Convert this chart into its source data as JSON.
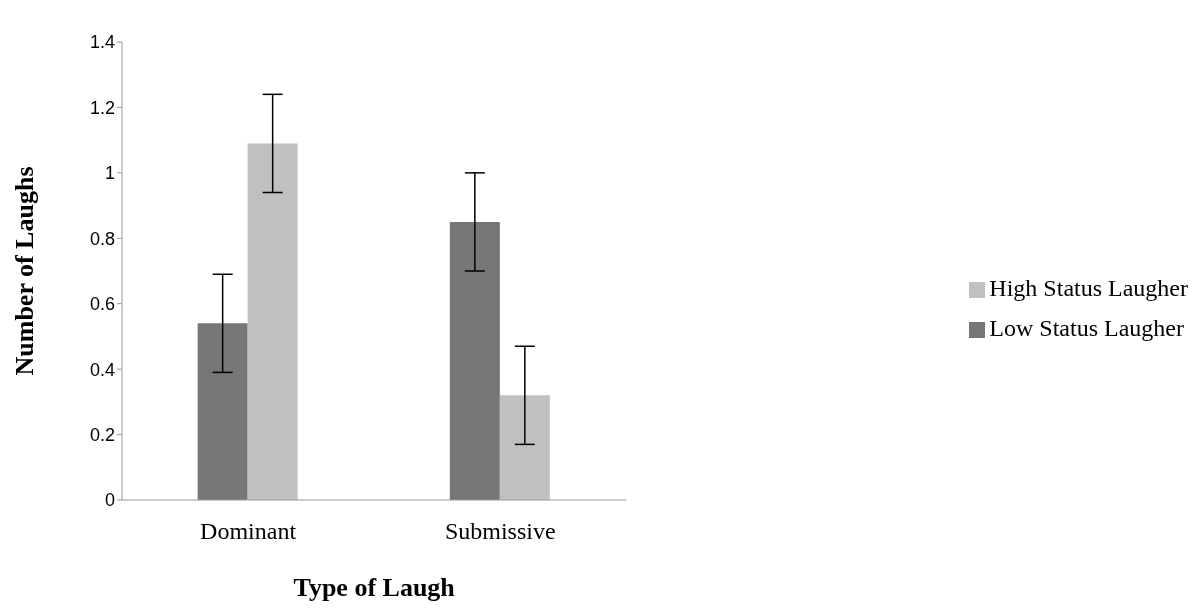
{
  "chart_data": {
    "type": "bar",
    "xlabel": "Type of Laugh",
    "ylabel": "Number of Laughs",
    "categories": [
      "Dominant",
      "Submissive"
    ],
    "series": [
      {
        "name": "Low Status Laugher",
        "color": "#767676",
        "values": [
          0.54,
          0.85
        ],
        "errors": [
          0.15,
          0.15
        ]
      },
      {
        "name": "High Status Laugher",
        "color": "#c0c0c0",
        "values": [
          1.09,
          0.32
        ],
        "errors": [
          0.15,
          0.15
        ]
      }
    ],
    "ylim": [
      0,
      1.4
    ],
    "yticks": [
      0,
      0.2,
      0.4,
      0.6,
      0.8,
      1,
      1.2,
      1.4
    ],
    "grid": false,
    "legend": "right"
  }
}
